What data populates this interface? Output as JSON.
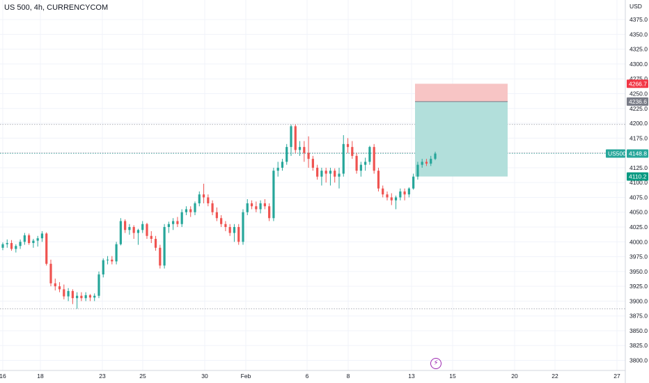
{
  "header": {
    "title": "US 500, 4h, CURRENCYCOM"
  },
  "axis": {
    "currency": "USD"
  },
  "colors": {
    "up": "#26a69a",
    "down": "#ef5350",
    "stop_zone": "#f7c5c5",
    "target_zone": "#b2dfdb",
    "stop_tag": "#f23645",
    "entry_tag": "#787b86",
    "target_tag": "#089981",
    "price_tag": "#26a69a",
    "grid": "#f0f3fa",
    "event_icon": "#9c27b0"
  },
  "price_tags": {
    "stop": "4266.7",
    "entry": "4236.6",
    "target": "4110.2",
    "last_symbol": "US500",
    "last_price": "4148.8"
  },
  "event_icon": "lightning-icon",
  "chart_data": {
    "type": "candlestick",
    "title": "US 500, 4h, CURRENCYCOM",
    "ylabel": "USD",
    "ylim": [
      3783,
      4408
    ],
    "y_ticks": [
      "4375.0",
      "4350.0",
      "4325.0",
      "4300.0",
      "4275.0",
      "4250.0",
      "4225.0",
      "4200.0",
      "4175.0",
      "4150.0",
      "4125.0",
      "4100.0",
      "4075.0",
      "4050.0",
      "4025.0",
      "4000.0",
      "3975.0",
      "3950.0",
      "3925.0",
      "3900.0",
      "3875.0",
      "3850.0",
      "3825.0",
      "3800.0"
    ],
    "x_ticks": [
      "16",
      "18",
      "23",
      "25",
      "30",
      "Feb",
      "6",
      "8",
      "13",
      "15",
      "20",
      "22",
      "27"
    ],
    "grid": true,
    "reference_lines": [
      4198,
      4150,
      3887
    ],
    "position": {
      "stop": 4266.7,
      "entry": 4236.6,
      "target": 4110.2
    },
    "candles": [
      [
        3990,
        3999,
        3986,
        3996
      ],
      [
        3996,
        4004,
        3990,
        3998
      ],
      [
        3998,
        4003,
        3985,
        3988
      ],
      [
        3988,
        3996,
        3982,
        3993
      ],
      [
        3993,
        4004,
        3988,
        4000
      ],
      [
        4000,
        4015,
        3995,
        4011
      ],
      [
        4011,
        4014,
        3995,
        3998
      ],
      [
        3998,
        4005,
        3990,
        4002
      ],
      [
        4002,
        4010,
        3992,
        4006
      ],
      [
        4006,
        4018,
        4000,
        4014
      ],
      [
        4014,
        4016,
        3960,
        3963
      ],
      [
        3963,
        3970,
        3925,
        3930
      ],
      [
        3930,
        3938,
        3918,
        3925
      ],
      [
        3925,
        3932,
        3915,
        3920
      ],
      [
        3920,
        3928,
        3903,
        3908
      ],
      [
        3908,
        3922,
        3900,
        3917
      ],
      [
        3917,
        3920,
        3895,
        3905
      ],
      [
        3905,
        3915,
        3887,
        3909
      ],
      [
        3909,
        3915,
        3900,
        3905
      ],
      [
        3905,
        3915,
        3900,
        3910
      ],
      [
        3910,
        3912,
        3900,
        3906
      ],
      [
        3906,
        3913,
        3900,
        3909
      ],
      [
        3909,
        3950,
        3905,
        3945
      ],
      [
        3945,
        3972,
        3940,
        3969
      ],
      [
        3969,
        3976,
        3962,
        3970
      ],
      [
        3970,
        3976,
        3962,
        3967
      ],
      [
        3967,
        4000,
        3962,
        3996
      ],
      [
        3996,
        4040,
        3994,
        4035
      ],
      [
        4035,
        4038,
        4015,
        4020
      ],
      [
        4020,
        4030,
        4012,
        4025
      ],
      [
        4025,
        4028,
        4005,
        4015
      ],
      [
        4015,
        4022,
        3995,
        4020
      ],
      [
        4020,
        4035,
        4015,
        4030
      ],
      [
        4030,
        4032,
        4005,
        4010
      ],
      [
        4010,
        4018,
        3998,
        4005
      ],
      [
        4005,
        4010,
        3985,
        3990
      ],
      [
        3990,
        3995,
        3955,
        3960
      ],
      [
        3960,
        4030,
        3955,
        4025
      ],
      [
        4025,
        4034,
        4015,
        4030
      ],
      [
        4030,
        4040,
        4020,
        4035
      ],
      [
        4035,
        4042,
        4025,
        4030
      ],
      [
        4030,
        4055,
        4025,
        4050
      ],
      [
        4050,
        4060,
        4045,
        4055
      ],
      [
        4055,
        4060,
        4042,
        4050
      ],
      [
        4050,
        4068,
        4045,
        4065
      ],
      [
        4065,
        4085,
        4060,
        4080
      ],
      [
        4080,
        4098,
        4065,
        4075
      ],
      [
        4075,
        4080,
        4060,
        4065
      ],
      [
        4065,
        4070,
        4045,
        4050
      ],
      [
        4050,
        4058,
        4035,
        4040
      ],
      [
        4040,
        4045,
        4025,
        4030
      ],
      [
        4030,
        4035,
        4018,
        4025
      ],
      [
        4025,
        4030,
        4010,
        4015
      ],
      [
        4015,
        4030,
        4000,
        4025
      ],
      [
        4025,
        4030,
        3995,
        4000
      ],
      [
        4000,
        4055,
        3995,
        4050
      ],
      [
        4050,
        4072,
        4045,
        4065
      ],
      [
        4065,
        4070,
        4055,
        4060
      ],
      [
        4060,
        4068,
        4050,
        4055
      ],
      [
        4055,
        4070,
        4048,
        4065
      ],
      [
        4065,
        4072,
        4055,
        4060
      ],
      [
        4060,
        4065,
        4035,
        4040
      ],
      [
        4040,
        4125,
        4035,
        4120
      ],
      [
        4120,
        4135,
        4110,
        4125
      ],
      [
        4125,
        4140,
        4120,
        4135
      ],
      [
        4135,
        4165,
        4130,
        4160
      ],
      [
        4160,
        4198,
        4145,
        4195
      ],
      [
        4195,
        4198,
        4150,
        4155
      ],
      [
        4155,
        4170,
        4145,
        4160
      ],
      [
        4160,
        4170,
        4135,
        4150
      ],
      [
        4150,
        4178,
        4125,
        4140
      ],
      [
        4140,
        4145,
        4120,
        4125
      ],
      [
        4125,
        4130,
        4105,
        4110
      ],
      [
        4110,
        4125,
        4095,
        4120
      ],
      [
        4120,
        4125,
        4100,
        4115
      ],
      [
        4115,
        4125,
        4095,
        4120
      ],
      [
        4120,
        4124,
        4100,
        4110
      ],
      [
        4110,
        4125,
        4090,
        4115
      ],
      [
        4115,
        4180,
        4110,
        4165
      ],
      [
        4165,
        4175,
        4150,
        4160
      ],
      [
        4160,
        4170,
        4140,
        4145
      ],
      [
        4145,
        4150,
        4115,
        4120
      ],
      [
        4120,
        4135,
        4110,
        4130
      ],
      [
        4130,
        4142,
        4120,
        4135
      ],
      [
        4135,
        4162,
        4130,
        4160
      ],
      [
        4160,
        4165,
        4115,
        4120
      ],
      [
        4120,
        4125,
        4085,
        4090
      ],
      [
        4090,
        4095,
        4075,
        4080
      ],
      [
        4080,
        4085,
        4070,
        4075
      ],
      [
        4075,
        4082,
        4062,
        4070
      ],
      [
        4070,
        4078,
        4055,
        4075
      ],
      [
        4075,
        4090,
        4070,
        4085
      ],
      [
        4085,
        4090,
        4070,
        4080
      ],
      [
        4080,
        4092,
        4075,
        4090
      ],
      [
        4090,
        4115,
        4088,
        4110
      ],
      [
        4110,
        4135,
        4105,
        4130
      ],
      [
        4130,
        4140,
        4125,
        4135
      ],
      [
        4135,
        4140,
        4128,
        4132
      ],
      [
        4132,
        4145,
        4128,
        4140
      ],
      [
        4140,
        4152,
        4138,
        4149
      ]
    ]
  }
}
